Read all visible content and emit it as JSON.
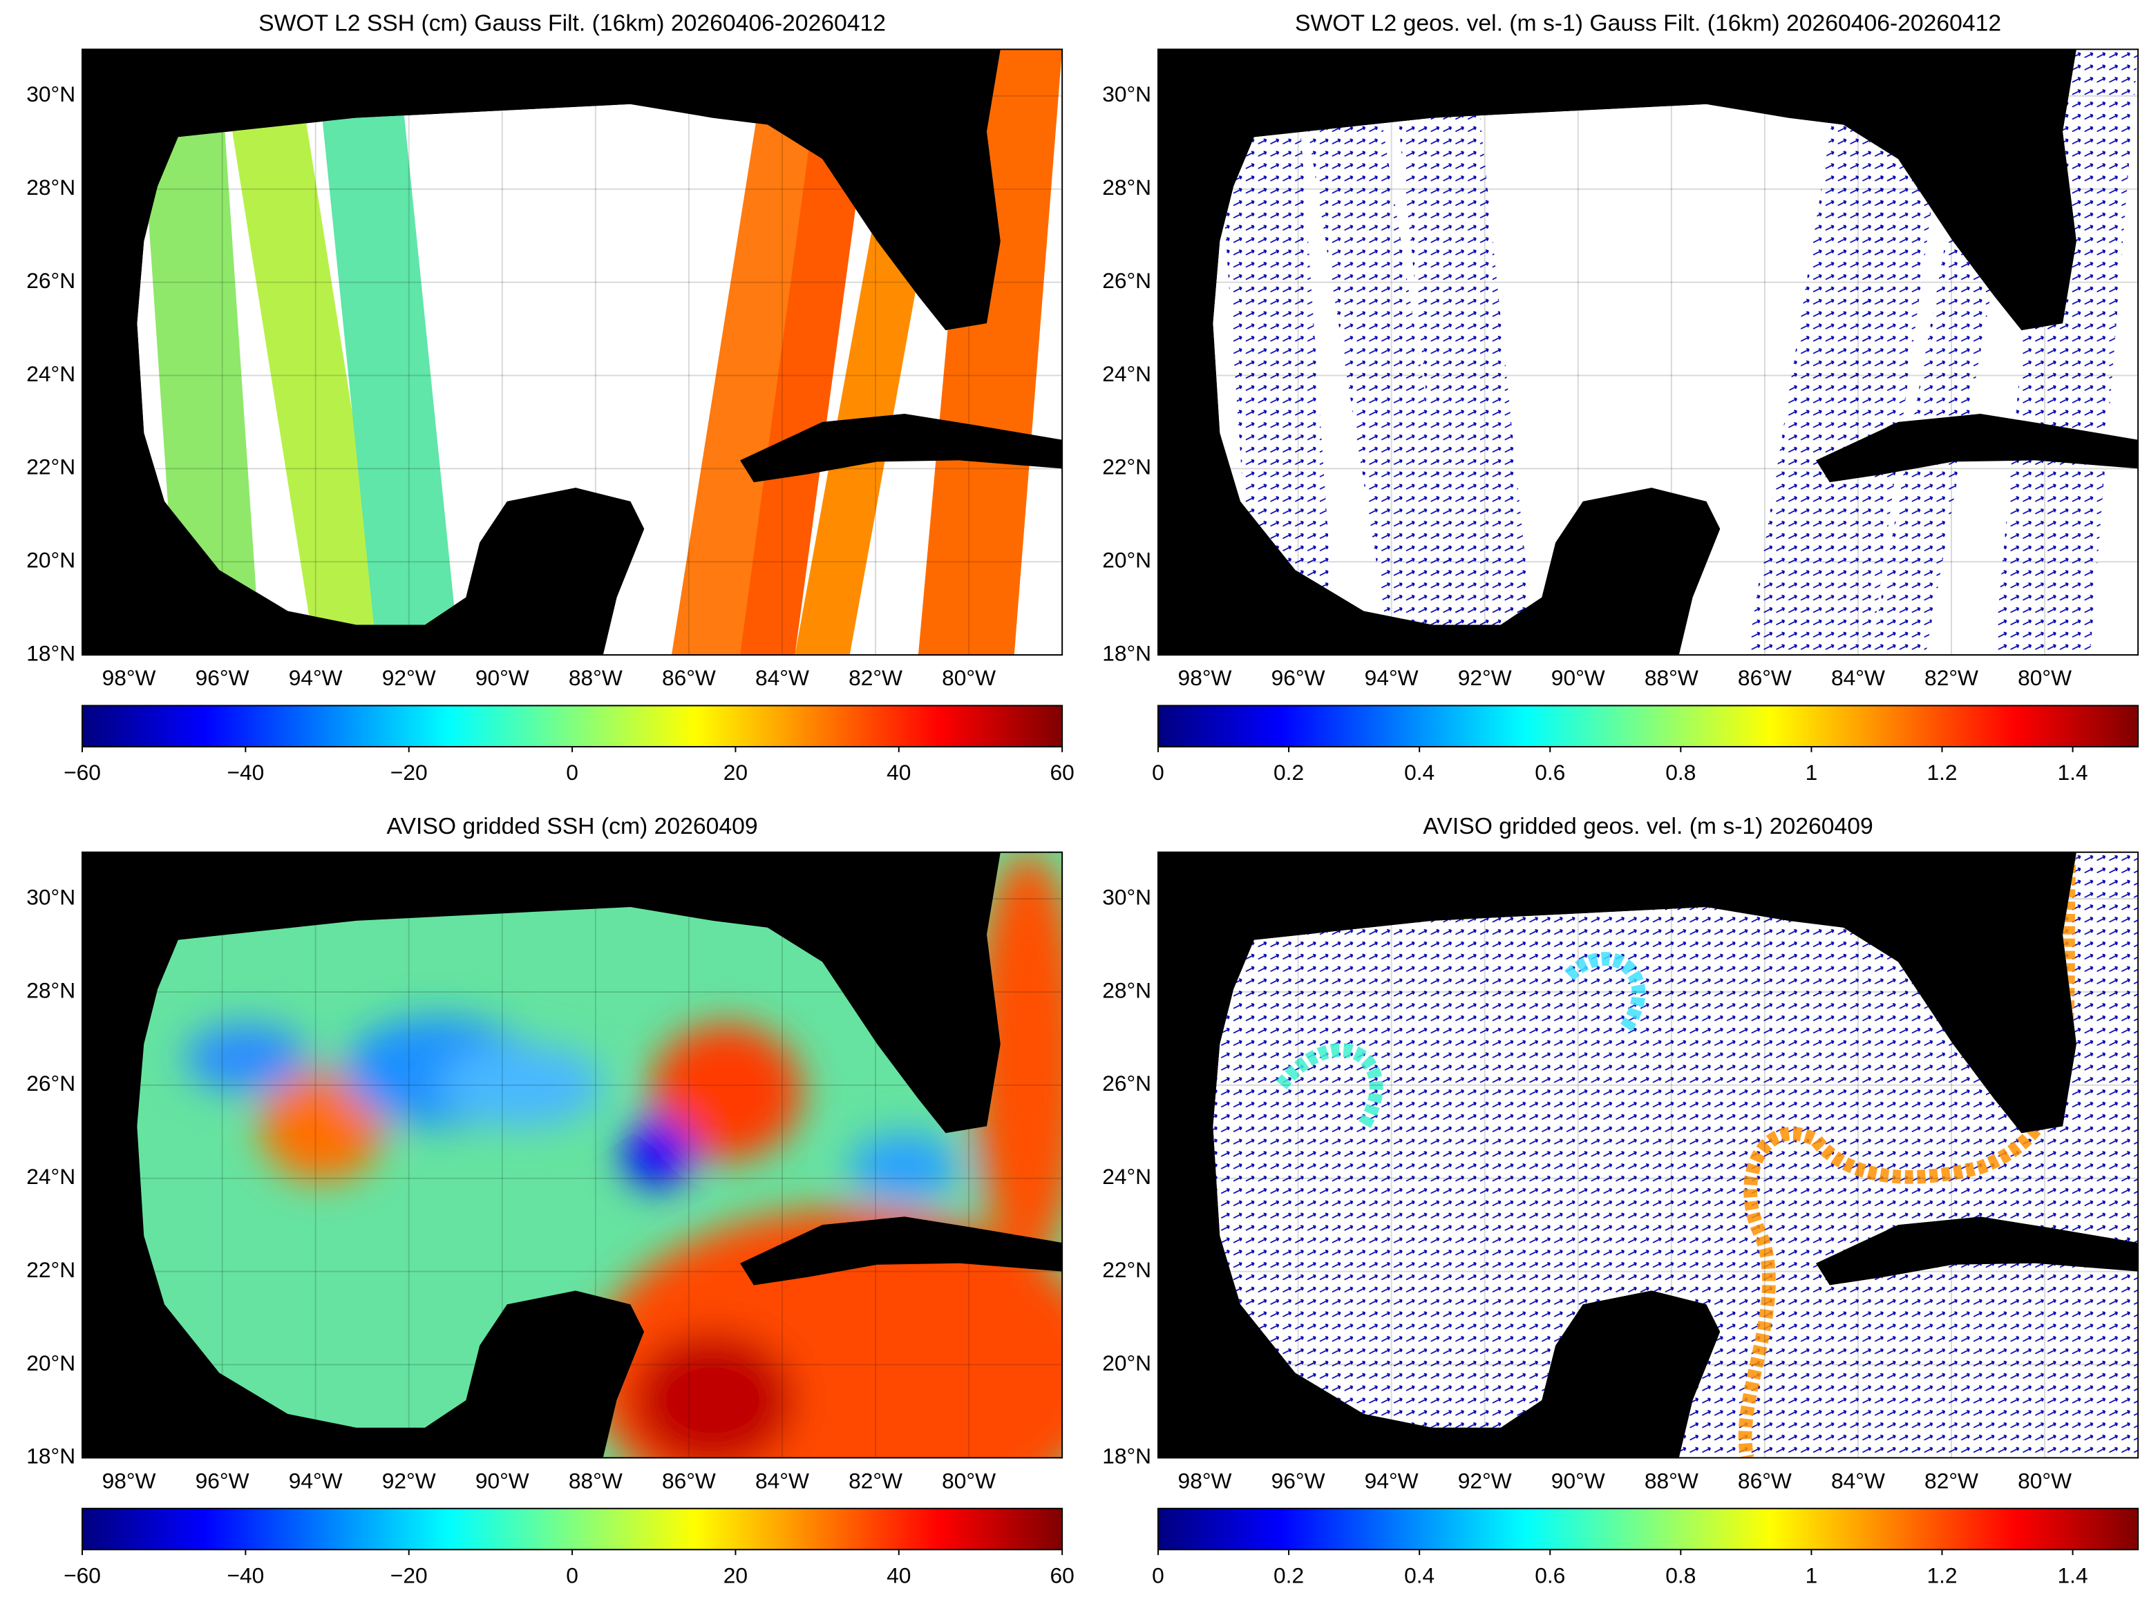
{
  "panels": [
    {
      "title": "SWOT L2 SSH (cm) Gauss Filt. (16km) 20260406-20260412",
      "xlim": [
        -99,
        -78
      ],
      "ylim": [
        18,
        31
      ],
      "xticks": [
        {
          "value": -98,
          "label": "98°W"
        },
        {
          "value": -96,
          "label": "96°W"
        },
        {
          "value": -94,
          "label": "94°W"
        },
        {
          "value": -92,
          "label": "92°W"
        },
        {
          "value": -90,
          "label": "90°W"
        },
        {
          "value": -88,
          "label": "88°W"
        },
        {
          "value": -86,
          "label": "86°W"
        },
        {
          "value": -84,
          "label": "84°W"
        },
        {
          "value": -82,
          "label": "82°W"
        },
        {
          "value": -80,
          "label": "80°W"
        }
      ],
      "yticks": [
        {
          "value": 18,
          "label": "18°N"
        },
        {
          "value": 20,
          "label": "20°N"
        },
        {
          "value": 22,
          "label": "22°N"
        },
        {
          "value": 24,
          "label": "24°N"
        },
        {
          "value": 26,
          "label": "26°N"
        },
        {
          "value": 28,
          "label": "28°N"
        },
        {
          "value": 30,
          "label": "30°N"
        }
      ],
      "colorbar": {
        "lim": [
          -60,
          60
        ],
        "ticks": [
          {
            "value": -60,
            "label": "−60"
          },
          {
            "value": -40,
            "label": "−40"
          },
          {
            "value": -20,
            "label": "−20"
          },
          0,
          20,
          40,
          60
        ]
      }
    },
    {
      "title": "SWOT L2 geos. vel. (m s-1) Gauss Filt. (16km) 20260406-20260412",
      "xlim": [
        -99,
        -78
      ],
      "ylim": [
        18,
        31
      ],
      "xticks": [
        {
          "value": -98,
          "label": "98°W"
        },
        {
          "value": -96,
          "label": "96°W"
        },
        {
          "value": -94,
          "label": "94°W"
        },
        {
          "value": -92,
          "label": "92°W"
        },
        {
          "value": -90,
          "label": "90°W"
        },
        {
          "value": -88,
          "label": "88°W"
        },
        {
          "value": -86,
          "label": "86°W"
        },
        {
          "value": -84,
          "label": "84°W"
        },
        {
          "value": -82,
          "label": "82°W"
        },
        {
          "value": -80,
          "label": "80°W"
        }
      ],
      "yticks": [
        {
          "value": 18,
          "label": "18°N"
        },
        {
          "value": 20,
          "label": "20°N"
        },
        {
          "value": 22,
          "label": "22°N"
        },
        {
          "value": 24,
          "label": "24°N"
        },
        {
          "value": 26,
          "label": "26°N"
        },
        {
          "value": 28,
          "label": "28°N"
        },
        {
          "value": 30,
          "label": "30°N"
        }
      ],
      "colorbar": {
        "lim": [
          0,
          1.5
        ],
        "ticks": [
          0,
          0.2,
          0.4,
          0.6,
          0.8,
          1,
          1.2,
          1.4
        ]
      }
    },
    {
      "title": "AVISO gridded SSH (cm) 20260409",
      "xlim": [
        -99,
        -78
      ],
      "ylim": [
        18,
        31
      ],
      "xticks": [
        {
          "value": -98,
          "label": "98°W"
        },
        {
          "value": -96,
          "label": "96°W"
        },
        {
          "value": -94,
          "label": "94°W"
        },
        {
          "value": -92,
          "label": "92°W"
        },
        {
          "value": -90,
          "label": "90°W"
        },
        {
          "value": -88,
          "label": "88°W"
        },
        {
          "value": -86,
          "label": "86°W"
        },
        {
          "value": -84,
          "label": "84°W"
        },
        {
          "value": -82,
          "label": "82°W"
        },
        {
          "value": -80,
          "label": "80°W"
        }
      ],
      "yticks": [
        {
          "value": 18,
          "label": "18°N"
        },
        {
          "value": 20,
          "label": "20°N"
        },
        {
          "value": 22,
          "label": "22°N"
        },
        {
          "value": 24,
          "label": "24°N"
        },
        {
          "value": 26,
          "label": "26°N"
        },
        {
          "value": 28,
          "label": "28°N"
        },
        {
          "value": 30,
          "label": "30°N"
        }
      ],
      "colorbar": {
        "lim": [
          -60,
          60
        ],
        "ticks": [
          {
            "value": -60,
            "label": "−60"
          },
          {
            "value": -40,
            "label": "−40"
          },
          {
            "value": -20,
            "label": "−20"
          },
          0,
          20,
          40,
          60
        ]
      }
    },
    {
      "title": "AVISO gridded geos. vel. (m s-1)  20260409",
      "xlim": [
        -99,
        -78
      ],
      "ylim": [
        18,
        31
      ],
      "xticks": [
        {
          "value": -98,
          "label": "98°W"
        },
        {
          "value": -96,
          "label": "96°W"
        },
        {
          "value": -94,
          "label": "94°W"
        },
        {
          "value": -92,
          "label": "92°W"
        },
        {
          "value": -90,
          "label": "90°W"
        },
        {
          "value": -88,
          "label": "88°W"
        },
        {
          "value": -86,
          "label": "86°W"
        },
        {
          "value": -84,
          "label": "84°W"
        },
        {
          "value": -82,
          "label": "82°W"
        },
        {
          "value": -80,
          "label": "80°W"
        }
      ],
      "yticks": [
        {
          "value": 18,
          "label": "18°N"
        },
        {
          "value": 20,
          "label": "20°N"
        },
        {
          "value": 22,
          "label": "22°N"
        },
        {
          "value": 24,
          "label": "24°N"
        },
        {
          "value": 26,
          "label": "26°N"
        },
        {
          "value": 28,
          "label": "28°N"
        },
        {
          "value": 30,
          "label": "30°N"
        }
      ],
      "colorbar": {
        "lim": [
          0,
          1.5
        ],
        "ticks": [
          0,
          0.2,
          0.4,
          0.6,
          0.8,
          1,
          1.2,
          1.4
        ]
      }
    }
  ]
}
